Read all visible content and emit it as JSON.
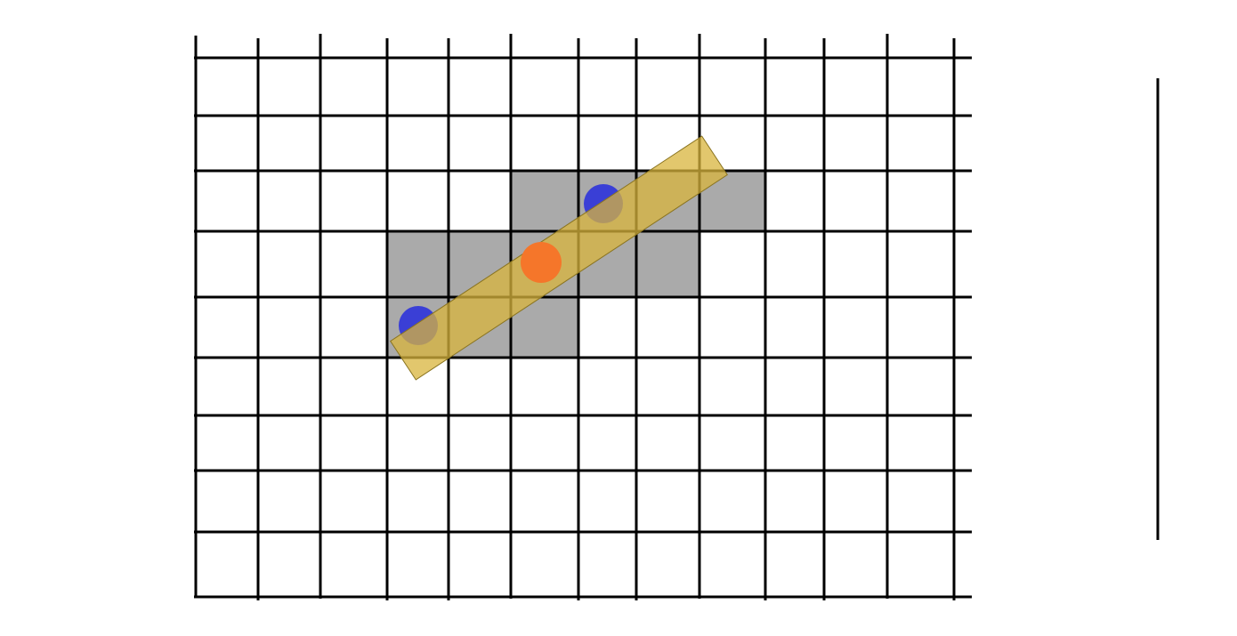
{
  "grid": {
    "columns": 12,
    "rows": 10,
    "line_color": "#000000"
  },
  "highlighted_cells": {
    "color": "#aaaaaa",
    "cells": [
      {
        "row": 3,
        "col": 5
      },
      {
        "row": 3,
        "col": 6
      },
      {
        "row": 3,
        "col": 7
      },
      {
        "row": 3,
        "col": 8
      },
      {
        "row": 4,
        "col": 3
      },
      {
        "row": 4,
        "col": 4
      },
      {
        "row": 4,
        "col": 5
      },
      {
        "row": 4,
        "col": 6
      },
      {
        "row": 4,
        "col": 7
      },
      {
        "row": 5,
        "col": 3
      },
      {
        "row": 5,
        "col": 4
      },
      {
        "row": 5,
        "col": 5
      }
    ]
  },
  "line_segment": {
    "color": "#d8b43c",
    "opacity": 0.75,
    "stroke": "#8a7420",
    "endpoints": [
      {
        "name": "endpoint-start",
        "color": "#3a3fd6",
        "cell_col": 3,
        "cell_row": 5
      },
      {
        "name": "endpoint-end",
        "color": "#3a3fd6",
        "cell_col": 6,
        "cell_row": 3
      }
    ],
    "midpoint": {
      "color": "#f5762a"
    }
  },
  "vertical_bar": {
    "color": "#000000"
  }
}
